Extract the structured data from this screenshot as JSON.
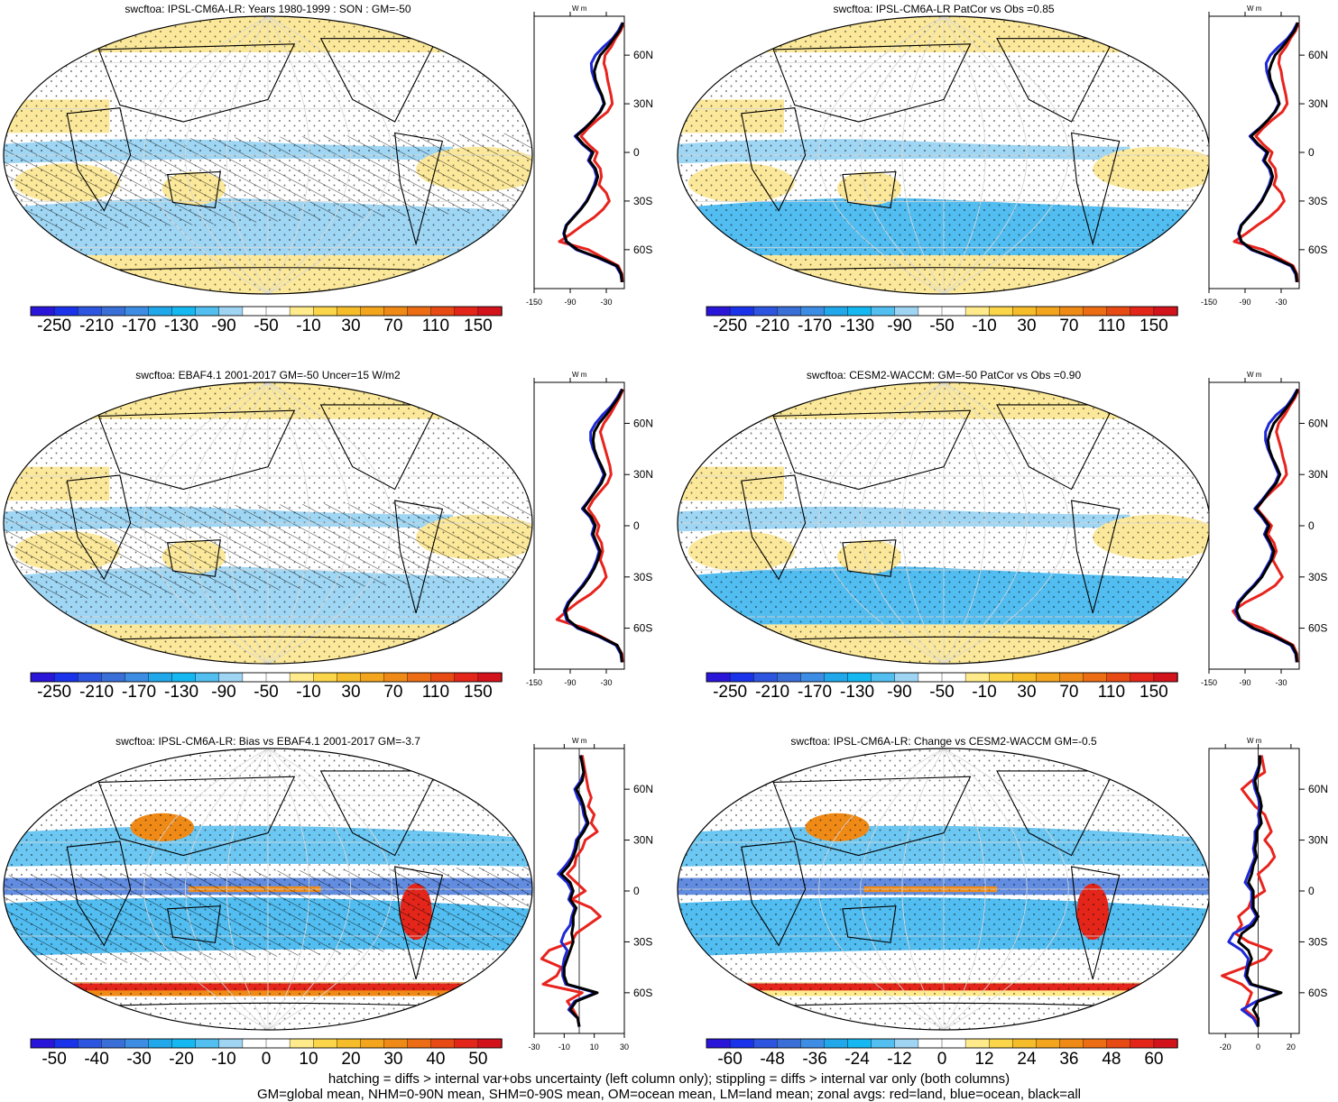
{
  "figure": {
    "footer_lines": [
      "hatching = diffs > internal var+obs uncertainty (left column only); stippling = diffs > internal var only (both columns)",
      "GM=global mean, NHM=0-90N mean, SHM=0-90S mean, OM=ocean mean, LM=land mean; zonal avgs: red=land, blue=ocean, black=all"
    ]
  },
  "colors": {
    "land": "#e8231d",
    "ocean": "#1f28d6",
    "all": "#000000",
    "palette_full": [
      "#2a16d8",
      "#1a32ea",
      "#2d55e0",
      "#3a6fd8",
      "#3e8de4",
      "#20a8ea",
      "#16b8f2",
      "#53bff0",
      "#9fd4f2",
      "#ffffff",
      "#ffffff",
      "#ffeb8c",
      "#fbd54a",
      "#f6bd2a",
      "#f3a51e",
      "#f08a16",
      "#ec6d14",
      "#e84a14",
      "#e4261a",
      "#d2131c"
    ],
    "palette_full_short": [
      "#2a16d8",
      "#1a32ea",
      "#2d55e0",
      "#3a6fd8",
      "#3e8de4",
      "#20a8ea",
      "#16b8f2",
      "#53bff0",
      "#9fd4f2",
      "#ffffff",
      "#ffeb8c",
      "#fbd54a",
      "#f6bd2a",
      "#f3a51e",
      "#f08a16",
      "#ec6d14",
      "#e84a14",
      "#e4261a",
      "#d2131c"
    ]
  },
  "chart_data": [
    {
      "type": "map",
      "id": "ipsl_climatology",
      "title": "swcftoa: IPSL-CM6A-LR: Years 1980-1999 : SON : GM=-50",
      "colorbar": {
        "labels": [
          "-250",
          "-210",
          "-170",
          "-130",
          "-90",
          "-50",
          "-10",
          "30",
          "70",
          "110",
          "150"
        ]
      },
      "zonal": {
        "xlim": [
          -150,
          0
        ],
        "xticks": [
          -150,
          -90,
          -30
        ],
        "xticklabels": [
          "-150",
          "-90",
          "-30"
        ],
        "ylabels": [
          "60N",
          "30N",
          "0",
          "30S",
          "60S"
        ],
        "units": "W m-2",
        "zero_line": false,
        "lat": [
          80,
          75,
          70,
          65,
          60,
          55,
          50,
          45,
          40,
          35,
          30,
          25,
          20,
          15,
          10,
          5,
          0,
          -5,
          -10,
          -15,
          -20,
          -25,
          -30,
          -35,
          -40,
          -45,
          -50,
          -55,
          -60,
          -65,
          -70,
          -75,
          -80
        ],
        "all": [
          -2,
          -8,
          -18,
          -28,
          -40,
          -46,
          -50,
          -48,
          -43,
          -37,
          -33,
          -40,
          -52,
          -65,
          -80,
          -68,
          -52,
          -58,
          -48,
          -44,
          -48,
          -55,
          -62,
          -72,
          -84,
          -96,
          -100,
          -96,
          -78,
          -42,
          -12,
          -5,
          -4
        ],
        "ocean": [
          -3,
          -10,
          -20,
          -35,
          -48,
          -55,
          -54,
          -50,
          -45,
          -38,
          -34,
          -41,
          -52,
          -66,
          -82,
          -70,
          -54,
          -60,
          -50,
          -46,
          -50,
          -56,
          -63,
          -73,
          -85,
          -97,
          -101,
          -97,
          -80,
          -44,
          -14,
          -6,
          -4
        ],
        "land": [
          -1,
          -6,
          -15,
          -22,
          -32,
          -34,
          -30,
          -28,
          -25,
          -22,
          -20,
          -28,
          -45,
          -60,
          -72,
          -60,
          -45,
          -50,
          -40,
          -38,
          -42,
          -30,
          -25,
          -35,
          -50,
          -70,
          -88,
          -108,
          -60,
          -35,
          -10,
          -4,
          -3
        ]
      }
    },
    {
      "type": "map",
      "id": "ipsl_patcor",
      "title": "swcftoa: IPSL-CM6A-LR PatCor vs Obs =0.85",
      "colorbar": {
        "labels": [
          "-250",
          "-210",
          "-170",
          "-130",
          "-90",
          "-50",
          "-10",
          "30",
          "70",
          "110",
          "150"
        ]
      },
      "zonal": {
        "xlim": [
          -150,
          0
        ],
        "xticks": [
          -150,
          -90,
          -30
        ],
        "xticklabels": [
          "-150",
          "-90",
          "-30"
        ],
        "ylabels": [
          "60N",
          "30N",
          "0",
          "30S",
          "60S"
        ],
        "units": "W m-2",
        "zero_line": false,
        "lat": [
          80,
          75,
          70,
          65,
          60,
          55,
          50,
          45,
          40,
          35,
          30,
          25,
          20,
          15,
          10,
          5,
          0,
          -5,
          -10,
          -15,
          -20,
          -25,
          -30,
          -35,
          -40,
          -45,
          -50,
          -55,
          -60,
          -65,
          -70,
          -75,
          -80
        ],
        "all": [
          -2,
          -8,
          -18,
          -28,
          -40,
          -46,
          -50,
          -48,
          -43,
          -37,
          -33,
          -40,
          -52,
          -65,
          -80,
          -68,
          -52,
          -58,
          -48,
          -44,
          -48,
          -55,
          -62,
          -72,
          -84,
          -96,
          -100,
          -96,
          -78,
          -42,
          -12,
          -5,
          -4
        ],
        "ocean": [
          -3,
          -10,
          -20,
          -35,
          -48,
          -55,
          -54,
          -50,
          -45,
          -38,
          -34,
          -41,
          -52,
          -66,
          -82,
          -70,
          -54,
          -60,
          -50,
          -46,
          -50,
          -56,
          -63,
          -73,
          -85,
          -97,
          -101,
          -97,
          -80,
          -44,
          -14,
          -6,
          -4
        ],
        "land": [
          -1,
          -6,
          -15,
          -22,
          -32,
          -34,
          -30,
          -28,
          -25,
          -22,
          -20,
          -28,
          -45,
          -60,
          -72,
          -60,
          -45,
          -50,
          -40,
          -38,
          -42,
          -30,
          -25,
          -35,
          -50,
          -70,
          -88,
          -108,
          -60,
          -35,
          -10,
          -4,
          -3
        ]
      }
    },
    {
      "type": "map",
      "id": "ebaf_obs",
      "title": "swcftoa: EBAF4.1 2001-2017 GM=-50 Uncer=15 W/m2",
      "colorbar": {
        "labels": [
          "-250",
          "-210",
          "-170",
          "-130",
          "-90",
          "-50",
          "-10",
          "30",
          "70",
          "110",
          "150"
        ]
      },
      "zonal": {
        "xlim": [
          -150,
          0
        ],
        "xticks": [
          -150,
          -90,
          -30
        ],
        "xticklabels": [
          "-150",
          "-90",
          "-30"
        ],
        "ylabels": [
          "60N",
          "30N",
          "0",
          "30S",
          "60S"
        ],
        "units": "W m-2",
        "zero_line": false,
        "lat": [
          80,
          75,
          70,
          65,
          60,
          55,
          50,
          45,
          40,
          35,
          30,
          25,
          20,
          15,
          10,
          5,
          0,
          -5,
          -10,
          -15,
          -20,
          -25,
          -30,
          -35,
          -40,
          -45,
          -50,
          -55,
          -60,
          -65,
          -70,
          -75,
          -80
        ],
        "all": [
          -3,
          -10,
          -20,
          -30,
          -42,
          -50,
          -52,
          -50,
          -45,
          -38,
          -32,
          -38,
          -48,
          -58,
          -68,
          -55,
          -48,
          -52,
          -46,
          -40,
          -44,
          -50,
          -58,
          -68,
          -80,
          -92,
          -98,
          -94,
          -76,
          -40,
          -12,
          -5,
          -4
        ],
        "ocean": [
          -4,
          -12,
          -22,
          -36,
          -48,
          -56,
          -56,
          -52,
          -46,
          -40,
          -34,
          -40,
          -49,
          -59,
          -70,
          -57,
          -50,
          -54,
          -48,
          -42,
          -46,
          -52,
          -60,
          -70,
          -82,
          -94,
          -100,
          -96,
          -78,
          -42,
          -14,
          -6,
          -4
        ],
        "land": [
          -2,
          -8,
          -16,
          -24,
          -34,
          -40,
          -36,
          -32,
          -28,
          -24,
          -22,
          -28,
          -40,
          -52,
          -60,
          -50,
          -42,
          -46,
          -38,
          -36,
          -40,
          -34,
          -30,
          -40,
          -56,
          -78,
          -96,
          -112,
          -66,
          -38,
          -12,
          -4,
          -3
        ]
      }
    },
    {
      "type": "map",
      "id": "cesm_climatology",
      "title": "swcftoa: CESM2-WACCM: GM=-50 PatCor vs Obs =0.90",
      "colorbar": {
        "labels": [
          "-250",
          "-210",
          "-170",
          "-130",
          "-90",
          "-50",
          "-10",
          "30",
          "70",
          "110",
          "150"
        ]
      },
      "zonal": {
        "xlim": [
          -150,
          0
        ],
        "xticks": [
          -150,
          -90,
          -30
        ],
        "xticklabels": [
          "-150",
          "-90",
          "-30"
        ],
        "ylabels": [
          "60N",
          "30N",
          "0",
          "30S",
          "60S"
        ],
        "units": "W m-2",
        "zero_line": false,
        "lat": [
          80,
          75,
          70,
          65,
          60,
          55,
          50,
          45,
          40,
          35,
          30,
          25,
          20,
          15,
          10,
          5,
          0,
          -5,
          -10,
          -15,
          -20,
          -25,
          -30,
          -35,
          -40,
          -45,
          -50,
          -55,
          -60,
          -65,
          -70,
          -75,
          -80
        ],
        "all": [
          -2,
          -9,
          -19,
          -30,
          -42,
          -48,
          -52,
          -50,
          -45,
          -38,
          -32,
          -38,
          -50,
          -60,
          -72,
          -60,
          -50,
          -56,
          -48,
          -42,
          -46,
          -54,
          -62,
          -74,
          -88,
          -100,
          -104,
          -98,
          -76,
          -40,
          -12,
          -5,
          -4
        ],
        "ocean": [
          -3,
          -11,
          -21,
          -38,
          -50,
          -56,
          -56,
          -52,
          -46,
          -40,
          -34,
          -40,
          -51,
          -62,
          -74,
          -62,
          -52,
          -58,
          -50,
          -44,
          -48,
          -56,
          -64,
          -76,
          -90,
          -102,
          -106,
          -100,
          -78,
          -42,
          -14,
          -6,
          -4
        ],
        "land": [
          -1,
          -7,
          -16,
          -24,
          -34,
          -38,
          -34,
          -30,
          -27,
          -23,
          -21,
          -30,
          -46,
          -60,
          -70,
          -58,
          -46,
          -52,
          -42,
          -38,
          -44,
          -36,
          -28,
          -40,
          -62,
          -90,
          -110,
          -100,
          -62,
          -36,
          -10,
          -4,
          -3
        ]
      }
    },
    {
      "type": "map",
      "id": "ipsl_bias",
      "title": "swcftoa: IPSL-CM6A-LR: Bias vs EBAF4.1 2001-2017  GM=-3.7",
      "colorbar": {
        "labels": [
          "-50",
          "-40",
          "-30",
          "-20",
          "-10",
          "0",
          "10",
          "20",
          "30",
          "40",
          "50"
        ]
      },
      "zonal": {
        "xlim": [
          -30,
          30
        ],
        "xticks": [
          -30,
          -10,
          10,
          30
        ],
        "xticklabels": [
          "-30",
          "-10",
          "10",
          "30"
        ],
        "ylabels": [
          "60N",
          "30N",
          "0",
          "30S",
          "60S"
        ],
        "units": "W m-2",
        "zero_line": true,
        "lat": [
          80,
          75,
          70,
          65,
          60,
          55,
          50,
          45,
          40,
          35,
          30,
          25,
          20,
          15,
          10,
          5,
          0,
          -5,
          -10,
          -15,
          -20,
          -25,
          -30,
          -35,
          -40,
          -45,
          -50,
          -55,
          -60,
          -65,
          -70,
          -75,
          -80
        ],
        "all": [
          1,
          2,
          3,
          2,
          -2,
          1,
          3,
          4,
          6,
          3,
          -1,
          -2,
          -4,
          -7,
          -12,
          -6,
          -4,
          -6,
          -2,
          -4,
          -4,
          -5,
          -4,
          -6,
          -8,
          -10,
          -10,
          -8,
          12,
          -2,
          -6,
          -1,
          0
        ],
        "ocean": [
          1,
          2,
          3,
          1,
          -3,
          -1,
          2,
          3,
          5,
          2,
          -2,
          -3,
          -5,
          -9,
          -14,
          -8,
          -5,
          -7,
          -3,
          -5,
          -6,
          -10,
          -12,
          -8,
          -10,
          -11,
          -11,
          -9,
          11,
          -3,
          -7,
          -1,
          0
        ],
        "land": [
          2,
          3,
          4,
          5,
          6,
          8,
          6,
          10,
          8,
          12,
          4,
          2,
          -2,
          -3,
          -8,
          -2,
          4,
          -5,
          8,
          14,
          6,
          -2,
          -5,
          -20,
          -25,
          -12,
          -15,
          -24,
          2,
          -8,
          -4,
          -1,
          0
        ]
      }
    },
    {
      "type": "map",
      "id": "ipsl_change",
      "title": "swcftoa: IPSL-CM6A-LR: Change vs CESM2-WACCM GM=-0.5",
      "colorbar": {
        "labels": [
          "-60",
          "-48",
          "-36",
          "-24",
          "-12",
          "0",
          "12",
          "24",
          "36",
          "48",
          "60"
        ]
      },
      "zonal": {
        "xlim": [
          -30,
          25
        ],
        "xticks": [
          -20,
          0,
          20
        ],
        "xticklabels": [
          "-20",
          "0",
          "20"
        ],
        "ylabels": [
          "60N",
          "30N",
          "0",
          "30S",
          "60S"
        ],
        "units": "W m-2",
        "zero_line": true,
        "lat": [
          80,
          75,
          70,
          65,
          60,
          55,
          50,
          45,
          40,
          35,
          30,
          25,
          20,
          15,
          10,
          5,
          0,
          -5,
          -10,
          -15,
          -20,
          -25,
          -30,
          -35,
          -40,
          -45,
          -50,
          -55,
          -60,
          -65,
          -70,
          -75,
          -80
        ],
        "all": [
          1,
          1,
          0,
          -2,
          -1,
          1,
          2,
          1,
          2,
          -1,
          -1,
          -2,
          -1,
          -3,
          -4,
          -6,
          -3,
          -3,
          -3,
          0,
          -3,
          -10,
          -12,
          -6,
          -4,
          -6,
          -7,
          -4,
          14,
          0,
          -3,
          0,
          0
        ],
        "ocean": [
          1,
          1,
          -1,
          -3,
          -2,
          0,
          1,
          0,
          1,
          -2,
          -2,
          -3,
          -2,
          -4,
          -6,
          -8,
          -4,
          -4,
          -4,
          -1,
          -5,
          -15,
          -18,
          -10,
          -6,
          -7,
          -8,
          -5,
          13,
          -1,
          -10,
          -3,
          0
        ],
        "land": [
          2,
          3,
          4,
          -4,
          -10,
          -6,
          -2,
          4,
          6,
          8,
          4,
          8,
          10,
          6,
          0,
          2,
          4,
          -4,
          -6,
          -12,
          -10,
          -14,
          -6,
          8,
          4,
          -8,
          -22,
          -10,
          -4,
          -6,
          -8,
          -2,
          0
        ]
      }
    }
  ]
}
